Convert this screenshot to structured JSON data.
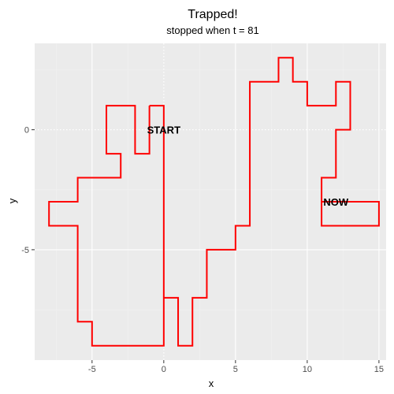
{
  "chart_data": {
    "type": "line",
    "title": "Trapped!",
    "subtitle": "stopped when t = 81",
    "xlabel": "x",
    "ylabel": "y",
    "xlim": [
      -9,
      15.5
    ],
    "ylim": [
      -9.6,
      3.6
    ],
    "x_ticks": [
      -5,
      0,
      5,
      10,
      15
    ],
    "y_ticks": [
      0,
      -5
    ],
    "x_tick_labels": [
      "-5",
      "0",
      "5",
      "10",
      "15"
    ],
    "y_tick_labels": [
      "0",
      "-5"
    ],
    "grid": true,
    "background": "#ebebeb",
    "dotted_zero_lines": true,
    "series": [
      {
        "color": "#ff0000",
        "points": [
          [
            -1,
            1
          ],
          [
            0,
            1
          ],
          [
            0,
            -9
          ],
          [
            -5,
            -9
          ],
          [
            -5,
            -8
          ],
          [
            -6,
            -8
          ],
          [
            -6,
            -4
          ],
          [
            -8,
            -4
          ],
          [
            -8,
            -3
          ],
          [
            -6,
            -3
          ],
          [
            -6,
            -2
          ],
          [
            -3,
            -2
          ],
          [
            -3,
            -1
          ],
          [
            -4,
            -1
          ],
          [
            -4,
            1
          ],
          [
            -2,
            1
          ],
          [
            -2,
            -1
          ],
          [
            -1,
            -1
          ],
          [
            -1,
            1
          ]
        ]
      },
      {
        "color": "#ff0000",
        "points": [
          [
            0,
            -7
          ],
          [
            1,
            -7
          ],
          [
            1,
            -9
          ],
          [
            2,
            -9
          ],
          [
            2,
            -7
          ],
          [
            3,
            -7
          ],
          [
            3,
            -5
          ],
          [
            5,
            -5
          ],
          [
            5,
            -4
          ],
          [
            6,
            -4
          ],
          [
            6,
            2
          ],
          [
            8,
            2
          ],
          [
            8,
            3
          ],
          [
            9,
            3
          ],
          [
            9,
            2
          ],
          [
            10,
            2
          ],
          [
            10,
            1
          ],
          [
            12,
            1
          ],
          [
            12,
            2
          ],
          [
            13,
            2
          ],
          [
            13,
            0
          ],
          [
            12,
            0
          ],
          [
            12,
            -2
          ],
          [
            11,
            -2
          ],
          [
            11,
            -4
          ],
          [
            15,
            -4
          ],
          [
            15,
            -3
          ],
          [
            11,
            -3
          ]
        ]
      }
    ],
    "annotations": [
      {
        "label": "START",
        "x": 0,
        "y": 0
      },
      {
        "label": "NOW",
        "x": 12,
        "y": -3
      }
    ]
  }
}
